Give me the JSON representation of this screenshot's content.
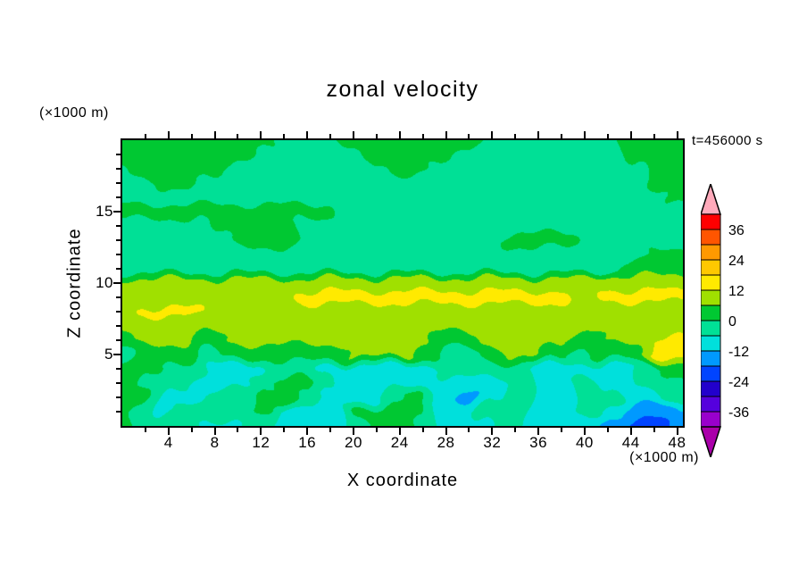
{
  "title": "zonal velocity",
  "time_label": "t=456000 s",
  "axes": {
    "x_label": "X coordinate",
    "x_unit": "(×1000 m)",
    "y_label": "Z coordinate",
    "y_unit": "(×1000 m)",
    "x_ticks": [
      4,
      8,
      12,
      16,
      20,
      24,
      28,
      32,
      36,
      40,
      44,
      48
    ],
    "x_minor_step": 2,
    "y_ticks": [
      5,
      10,
      15
    ],
    "z_minor_step": 1,
    "x_range": [
      0,
      48.5
    ],
    "z_range": [
      0,
      20
    ]
  },
  "colorbar": {
    "labels": [
      "36",
      "24",
      "12",
      "0",
      "-12",
      "-24",
      "-36"
    ],
    "colors_top_to_bottom": [
      "#FF0000",
      "#FF5500",
      "#FF9900",
      "#FFC800",
      "#FFEA00",
      "#A0E000",
      "#00C832",
      "#00E096",
      "#00E0DC",
      "#0099FF",
      "#0044FF",
      "#2200CC",
      "#5500DD",
      "#9900CC"
    ],
    "over_color": "#FFAABB",
    "under_color": "#AA00AA",
    "outline_color": "#000000"
  },
  "chart_data": {
    "type": "filled_contour",
    "title": "zonal velocity",
    "xlabel": "X coordinate (×1000 m)",
    "ylabel": "Z coordinate (×1000 m)",
    "time": "t=456000 s",
    "levels": [
      -42,
      -36,
      -30,
      -24,
      -18,
      -12,
      -6,
      0,
      6,
      12,
      18,
      24,
      30,
      36,
      42
    ],
    "colors": [
      "#9900CC",
      "#5500DD",
      "#2200CC",
      "#0044FF",
      "#0099FF",
      "#00E0DC",
      "#00E096",
      "#00C832",
      "#A0E000",
      "#FFEA00",
      "#FFC800",
      "#FF9900",
      "#FF5500",
      "#FF0000"
    ],
    "under_color": "#AA00AA",
    "over_color": "#FFAABB",
    "x_plot_range": [
      0,
      48.5
    ],
    "z_plot_range": [
      0,
      20
    ],
    "x": [
      0,
      2,
      4,
      6,
      8,
      10,
      12,
      14,
      16,
      18,
      20,
      22,
      24,
      26,
      28,
      30,
      32,
      34,
      36,
      38,
      40,
      42,
      44,
      46,
      48
    ],
    "z": [
      0,
      1,
      2,
      3,
      4,
      5,
      6,
      7,
      8,
      9,
      10,
      11,
      12,
      13,
      14,
      15,
      16,
      17,
      18,
      19,
      20
    ],
    "values": [
      [
        2,
        -2,
        -2,
        -2,
        -8,
        -8,
        -2,
        -8,
        -8,
        -8,
        -2,
        2,
        2,
        -2,
        -8,
        -8,
        -8,
        -2,
        -8,
        -8,
        -8,
        -14,
        -20,
        -20,
        -14
      ],
      [
        2,
        -2,
        -8,
        -2,
        -2,
        -2,
        2,
        -10,
        -10,
        -10,
        2,
        2,
        2,
        2,
        -8,
        -8,
        -2,
        -2,
        -8,
        -8,
        -2,
        -10,
        -16,
        -16,
        -12
      ],
      [
        2,
        2,
        -8,
        -8,
        -2,
        -2,
        2,
        2,
        -2,
        -8,
        -8,
        -8,
        -2,
        2,
        -8,
        -14,
        -8,
        -2,
        -8,
        -8,
        -2,
        -2,
        -8,
        -8,
        -2
      ],
      [
        2,
        -2,
        -2,
        -8,
        -8,
        -8,
        -2,
        2,
        2,
        -2,
        -11,
        -11,
        -8,
        -8,
        -8,
        -8,
        -8,
        -2,
        -8,
        -8,
        -2,
        -8,
        -8,
        -2,
        -2
      ],
      [
        2,
        2,
        -2,
        -2,
        -8,
        -8,
        -8,
        -2,
        -2,
        -8,
        -8,
        -8,
        -8,
        -8,
        -2,
        -2,
        -2,
        -2,
        -8,
        -8,
        -8,
        -8,
        -8,
        -2,
        2
      ],
      [
        -2,
        2,
        2,
        2,
        -2,
        2,
        2,
        2,
        2,
        2,
        7,
        7,
        7,
        2,
        -2,
        -2,
        2,
        7,
        7,
        2,
        -2,
        2,
        2,
        13,
        13
      ],
      [
        2,
        7,
        7,
        7,
        2,
        7,
        7,
        7,
        7,
        7,
        7,
        7,
        7,
        7,
        2,
        2,
        7,
        7,
        7,
        7,
        2,
        7,
        7,
        13,
        13
      ],
      [
        8,
        8,
        8,
        8,
        8,
        8,
        8,
        8,
        8,
        8,
        8,
        8,
        8,
        8,
        8,
        8,
        8,
        8,
        8,
        8,
        8,
        8,
        8,
        8,
        8
      ],
      [
        8,
        13,
        13,
        13,
        8,
        9,
        9,
        9,
        9,
        9,
        9,
        9,
        9,
        9,
        9,
        9,
        9,
        9,
        9,
        8,
        8,
        8,
        8,
        8,
        8
      ],
      [
        8,
        8,
        8,
        8,
        8,
        8,
        8,
        8,
        14,
        14,
        14,
        14,
        14,
        14,
        14,
        14,
        14,
        14,
        14,
        14,
        8,
        13,
        13,
        13,
        13
      ],
      [
        8,
        8,
        8,
        8,
        8,
        8,
        8,
        8,
        8,
        9,
        9,
        9,
        9,
        9,
        9,
        9,
        9,
        9,
        9,
        9,
        8,
        11,
        11,
        11,
        11
      ],
      [
        -2,
        -2,
        -2,
        -2,
        -2,
        -2,
        -2,
        -2,
        -2,
        -2,
        -2,
        -2,
        -2,
        -2,
        -2,
        -2,
        -2,
        -2,
        -2,
        -2,
        -2,
        -2,
        2,
        2,
        2
      ],
      [
        -2,
        -2,
        -2,
        -2,
        -2,
        -2,
        -2,
        -2,
        -2,
        -2,
        -2,
        -2,
        -2,
        -2,
        -2,
        -2,
        -2,
        -2,
        -2,
        -2,
        -2,
        -2,
        -2,
        2,
        2
      ],
      [
        -2,
        -2,
        -2,
        -2,
        -2,
        2,
        2,
        2,
        -2,
        -2,
        -2,
        -2,
        -2,
        -2,
        -2,
        -2,
        -2,
        2,
        2,
        2,
        -2,
        -2,
        -2,
        -2,
        -2
      ],
      [
        -2,
        -2,
        -2,
        -2,
        2,
        2,
        2,
        2,
        -2,
        -2,
        -2,
        -2,
        -2,
        -2,
        -2,
        -2,
        -2,
        -2,
        -2,
        -2,
        -2,
        -2,
        -2,
        -2,
        -2
      ],
      [
        2,
        2,
        2,
        2,
        2,
        2,
        2,
        2,
        2,
        2,
        -2,
        -2,
        -2,
        -2,
        -2,
        -2,
        -2,
        -2,
        -2,
        -2,
        -2,
        -2,
        -2,
        -2,
        -2
      ],
      [
        -2,
        -2,
        -2,
        -2,
        -2,
        -2,
        -2,
        -2,
        -2,
        -2,
        -2,
        -2,
        -2,
        -2,
        -2,
        -2,
        -2,
        -2,
        -2,
        -2,
        -2,
        -2,
        -2,
        -2,
        2
      ],
      [
        -2,
        -2,
        2,
        2,
        -2,
        -2,
        -2,
        -2,
        -2,
        -2,
        -2,
        -2,
        -2,
        -2,
        -2,
        -2,
        -2,
        -2,
        -2,
        -2,
        -2,
        -2,
        -2,
        2,
        2
      ],
      [
        -2,
        2,
        2,
        2,
        2,
        -2,
        -2,
        -2,
        -2,
        -2,
        -2,
        -2,
        2,
        2,
        -2,
        -2,
        -2,
        -2,
        -2,
        -2,
        -2,
        -2,
        -2,
        2,
        2
      ],
      [
        2,
        2,
        2,
        2,
        2,
        2,
        -2,
        -2,
        -2,
        -2,
        -2,
        2,
        2,
        2,
        2,
        -2,
        -2,
        -2,
        -2,
        -2,
        -2,
        -2,
        2,
        2,
        2
      ],
      [
        2,
        2,
        2,
        2,
        2,
        2,
        2,
        -2,
        -2,
        -2,
        2,
        2,
        2,
        2,
        2,
        2,
        -2,
        -2,
        -2,
        -2,
        -2,
        -2,
        2,
        2,
        2
      ]
    ]
  }
}
